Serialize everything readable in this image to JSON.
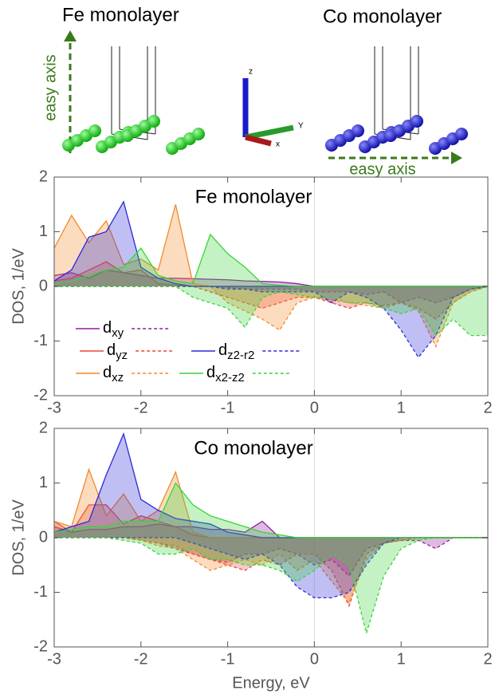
{
  "illustration": {
    "left_title": "Fe monolayer",
    "right_title": "Co monolayer",
    "left_axis_label": "easy axis",
    "right_axis_label": "easy axis",
    "triad": [
      "z",
      "Y",
      "x"
    ]
  },
  "chart_data": [
    {
      "type": "area",
      "title": "Fe monolayer",
      "ylabel": "DOS, 1/eV",
      "legend": true,
      "x": [
        -3,
        -2.8,
        -2.6,
        -2.4,
        -2.2,
        -2,
        -1.8,
        -1.6,
        -1.4,
        -1.2,
        -1,
        -0.8,
        -0.6,
        -0.4,
        -0.2,
        0,
        0.2,
        0.4,
        0.6,
        0.8,
        1,
        1.2,
        1.4,
        1.6,
        1.8,
        2
      ],
      "xlim": [
        -3,
        2
      ],
      "xticks": [
        -3,
        -2,
        -1,
        0,
        1,
        2
      ],
      "ylim": [
        -2,
        2
      ],
      "yticks": [
        -2,
        -1,
        0,
        1,
        2
      ],
      "series": [
        {
          "name": "dxy",
          "color": "#8e1f9c",
          "values": [
            0.2,
            0.25,
            0.15,
            0.3,
            0.25,
            0.2,
            0.15,
            0.15,
            0.14,
            0.13,
            0.12,
            0.1,
            0.09,
            0.08,
            0.05,
            0,
            0,
            0,
            0,
            0,
            0,
            0,
            0,
            0,
            0,
            0
          ],
          "values_down": [
            0,
            0,
            0,
            0,
            0,
            0,
            0,
            0,
            0,
            0,
            -0.02,
            -0.05,
            -0.05,
            -0.05,
            -0.05,
            -0.1,
            -0.1,
            -0.1,
            -0.15,
            -0.1,
            -0.3,
            -0.2,
            -0.3,
            -0.2,
            -0.05,
            0
          ]
        },
        {
          "name": "dyz",
          "color": "#e8493a",
          "values": [
            0.1,
            0.15,
            0.3,
            0.45,
            0.25,
            0.3,
            0.05,
            0.02,
            0,
            0,
            0,
            0,
            0,
            0,
            0,
            0,
            0,
            0,
            0,
            0,
            0,
            0,
            0,
            0,
            0,
            0
          ],
          "values_down": [
            0,
            0,
            0,
            0,
            0,
            0,
            0,
            0,
            0,
            -0.1,
            -0.2,
            -0.3,
            -0.4,
            -0.3,
            -0.2,
            -0.2,
            -0.3,
            -0.4,
            -0.3,
            -0.35,
            -0.3,
            -0.4,
            -0.6,
            -0.3,
            -0.1,
            0
          ]
        },
        {
          "name": "dxz",
          "color": "#f28a2a",
          "values": [
            0.7,
            1.3,
            0.8,
            1.2,
            0.4,
            0.5,
            0.3,
            1.5,
            0.05,
            0,
            0,
            0,
            0,
            0,
            0,
            0,
            0,
            0,
            0,
            0,
            0,
            0,
            0,
            0,
            0,
            0
          ],
          "values_down": [
            0,
            0,
            0,
            0,
            0,
            0,
            0,
            0,
            0,
            0,
            -0.3,
            -0.45,
            -0.6,
            -0.8,
            -0.3,
            -0.2,
            -0.25,
            -0.3,
            -0.35,
            -0.4,
            -0.3,
            -0.45,
            -1.1,
            -0.3,
            -0.1,
            0
          ]
        },
        {
          "name": "dz2-r2",
          "color": "#2a2ad8",
          "values": [
            0.1,
            0.3,
            0.9,
            1.0,
            1.55,
            0.35,
            0.15,
            0.05,
            0,
            0,
            0,
            0,
            0,
            0,
            0,
            0,
            0,
            0,
            0,
            0,
            0,
            0,
            0,
            0,
            0,
            0
          ],
          "values_down": [
            0,
            0,
            0,
            0,
            0,
            0,
            0,
            0,
            0,
            0,
            -0.05,
            -0.05,
            -0.1,
            -0.1,
            -0.1,
            -0.1,
            -0.3,
            -0.1,
            -0.2,
            -0.4,
            -0.8,
            -1.3,
            -0.9,
            -0.2,
            -0.05,
            0
          ]
        },
        {
          "name": "dx2-z2",
          "color": "#3ad43a",
          "values": [
            0.05,
            0.1,
            0.2,
            0.3,
            0.35,
            0.7,
            0.2,
            0.1,
            0.05,
            0.95,
            0.6,
            0.35,
            0.05,
            0.02,
            0,
            0,
            0,
            0,
            0,
            0,
            0,
            0,
            0,
            0,
            0,
            0
          ],
          "values_down": [
            0,
            0,
            0,
            0,
            0,
            0,
            0,
            0,
            -0.2,
            -0.3,
            -0.4,
            -0.75,
            -0.2,
            -0.1,
            -0.15,
            -0.2,
            -0.2,
            -0.3,
            -0.3,
            -0.4,
            -0.5,
            -0.4,
            -0.9,
            -0.6,
            -0.9,
            -0.9
          ]
        }
      ]
    },
    {
      "type": "area",
      "title": "Co monolayer",
      "ylabel": "DOS, 1/eV",
      "xlabel": "Energy, eV",
      "legend": false,
      "x": [
        -3,
        -2.8,
        -2.6,
        -2.4,
        -2.2,
        -2,
        -1.8,
        -1.6,
        -1.4,
        -1.2,
        -1,
        -0.8,
        -0.6,
        -0.4,
        -0.2,
        0,
        0.2,
        0.4,
        0.6,
        0.8,
        1,
        1.2,
        1.4,
        1.6,
        1.8,
        2
      ],
      "xlim": [
        -3,
        2
      ],
      "xticks": [
        -3,
        -2,
        -1,
        0,
        1,
        2
      ],
      "ylim": [
        -2,
        2
      ],
      "yticks": [
        -2,
        -1,
        0,
        1,
        2
      ],
      "series": [
        {
          "color": "#8e1f9c",
          "values": [
            0.2,
            0.1,
            0.15,
            0.15,
            0.2,
            0.2,
            0.25,
            0.2,
            0.2,
            0.15,
            0.15,
            0.1,
            0.3,
            0,
            0,
            0,
            0,
            0,
            0,
            0,
            0,
            0,
            0,
            0,
            0,
            0
          ],
          "values_down": [
            0,
            0,
            0,
            0,
            0,
            -0.05,
            -0.1,
            -0.2,
            -0.3,
            -0.4,
            -0.45,
            -0.3,
            -0.3,
            -0.2,
            -0.3,
            -0.5,
            -0.4,
            -0.7,
            -0.2,
            -0.1,
            -0.05,
            -0.05,
            -0.2,
            0,
            0,
            0
          ]
        },
        {
          "color": "#e8493a",
          "values": [
            0.3,
            0.1,
            0.6,
            0.6,
            0.25,
            0.4,
            0.3,
            0.2,
            0.05,
            0,
            0,
            0,
            0,
            0,
            0,
            0,
            0,
            0,
            0,
            0,
            0,
            0,
            0,
            0,
            0,
            0
          ],
          "values_down": [
            0,
            0,
            0,
            0,
            0,
            -0.05,
            -0.1,
            -0.15,
            -0.3,
            -0.4,
            -0.5,
            -0.6,
            -0.4,
            -0.5,
            -0.3,
            -0.3,
            -0.6,
            -1.25,
            -0.3,
            -0.1,
            -0.05,
            0,
            0,
            0,
            0,
            0
          ]
        },
        {
          "color": "#f28a2a",
          "values": [
            0.3,
            0.2,
            1.25,
            0.4,
            0.8,
            0.3,
            0.5,
            1.2,
            0.1,
            0,
            0,
            0,
            0,
            0,
            0,
            0,
            0,
            0,
            0,
            0,
            0,
            0,
            0,
            0,
            0,
            0
          ],
          "values_down": [
            0,
            0,
            0,
            0,
            0,
            -0.05,
            -0.15,
            -0.2,
            -0.4,
            -0.6,
            -0.5,
            -0.4,
            -0.5,
            -0.3,
            -0.6,
            -0.4,
            -0.8,
            -1.2,
            -0.4,
            -0.1,
            0,
            0,
            0,
            0,
            0,
            0
          ]
        },
        {
          "color": "#2a2ad8",
          "values": [
            0.1,
            0.2,
            0.3,
            1.15,
            1.9,
            0.7,
            0.5,
            0.35,
            0.3,
            0.25,
            0.1,
            0.05,
            0,
            0,
            0,
            0,
            0,
            0,
            0,
            0,
            0,
            0,
            0,
            0,
            0,
            0
          ],
          "values_down": [
            0,
            0,
            0,
            0,
            0,
            0,
            0,
            0,
            -0.1,
            -0.2,
            -0.3,
            -0.4,
            -0.3,
            -0.5,
            -0.9,
            -1.1,
            -1.1,
            -1.0,
            -0.5,
            -0.1,
            0,
            0,
            0,
            0,
            0,
            0
          ]
        },
        {
          "color": "#3ad43a",
          "values": [
            0.1,
            0.15,
            0.2,
            0.2,
            0.3,
            0.3,
            0.3,
            1.0,
            0.6,
            0.4,
            0.3,
            0.2,
            0.1,
            0.05,
            0,
            0,
            0,
            0,
            0,
            0,
            0,
            0,
            0,
            0,
            0,
            0
          ],
          "values_down": [
            0,
            0,
            0,
            0,
            -0.05,
            -0.1,
            -0.3,
            -0.3,
            -0.2,
            -0.4,
            -0.4,
            -0.5,
            -0.5,
            -0.6,
            -0.8,
            -0.6,
            -0.3,
            -0.5,
            -1.75,
            -0.7,
            -0.2,
            -0.05,
            0,
            0,
            0,
            0
          ]
        }
      ]
    }
  ]
}
